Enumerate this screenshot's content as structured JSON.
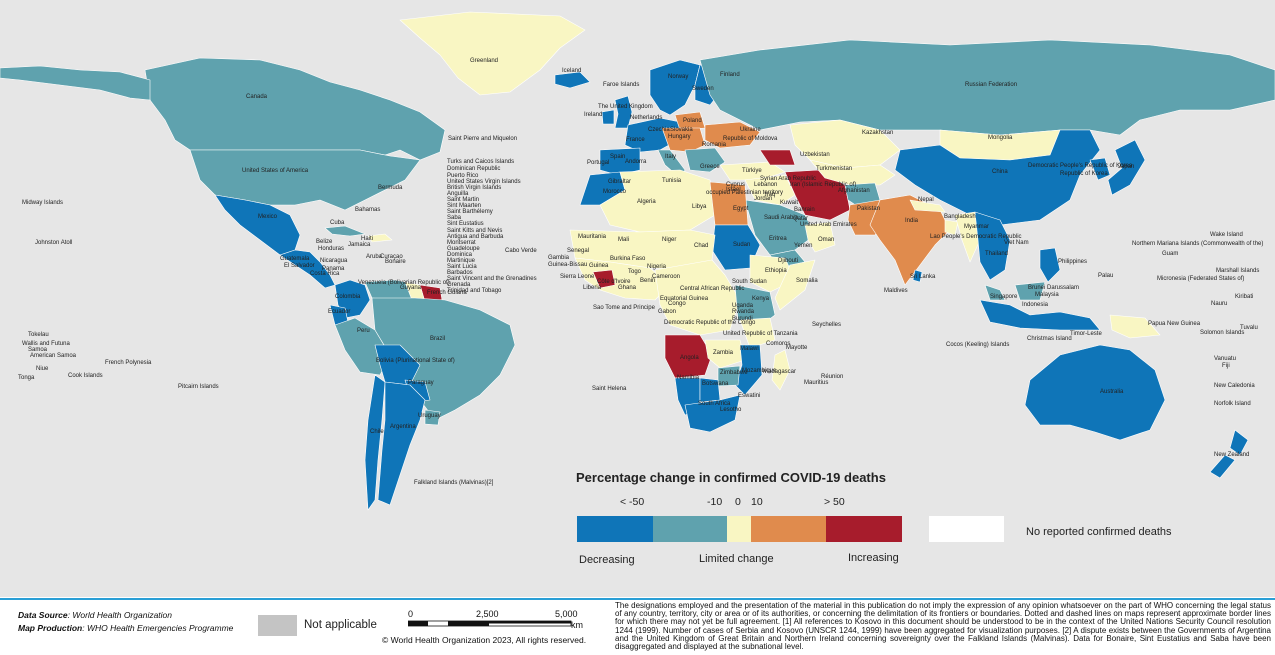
{
  "legend": {
    "title": "Percentage change in confirmed COVID-19 deaths",
    "ticks": [
      "< -50",
      "-10",
      "0",
      "10",
      "> 50"
    ],
    "bins": [
      {
        "name": "< -50",
        "color": "#0f75b8"
      },
      {
        "name": "-50 to -10",
        "color": "#5fa2ae"
      },
      {
        "name": "-10 to 10",
        "color": "#f9f6c3"
      },
      {
        "name": "10 to 50",
        "color": "#e08b4d"
      },
      {
        "name": "> 50",
        "color": "#a71c2c"
      }
    ],
    "no_data_label": "No reported confirmed deaths",
    "no_data_color": "#ffffff",
    "captions": {
      "decreasing": "Decreasing",
      "limited": "Limited change",
      "increasing": "Increasing"
    }
  },
  "colors": {
    "ocean": "#e6e6e6",
    "not_applicable": "#c4c4c4",
    "footer_rule": "#2a9fd6"
  },
  "footer": {
    "data_source_label": "Data Source",
    "data_source": ": World Health Organization",
    "map_production_label": "Map Production",
    "map_production": ": WHO Health Emergencies Programme",
    "not_applicable": "Not applicable",
    "scale": {
      "s0": "0",
      "s1": "2,500",
      "s2": "5,000",
      "unit": "km"
    },
    "copyright": "© World Health Organization 2023, All rights reserved.",
    "disclaimer": "The designations employed and the presentation of the material in this publication do not imply the expression of any opinion whatsoever on the part of WHO concerning the legal status of any country, territory, city or area or of its authorities, or concerning the delimitation of its frontiers or boundaries. Dotted and dashed lines on maps represent approximate border lines for which there may not yet be full agreement. [1] All references to Kosovo in this document should be understood to be in the context of the United Nations Security Council resolution 1244 (1999). Number of cases of Serbia and Kosovo (UNSCR 1244, 1999) have been aggregated for visualization purposes. [2] A dispute exists between the Governments of Argentina and the United Kingdom of Great Britain and Northern Ireland concerning sovereignty over the Falkland Islands (Malvinas). Data for Bonaire, Sint Eustatius and Saba have been disaggregated and displayed at the subnational level."
  },
  "map_labels": [
    "Greenland",
    "Iceland",
    "Canada",
    "Russian Federation",
    "United States of America",
    "Mexico",
    "Cuba",
    "Bahamas",
    "Bermuda",
    "Saint Pierre and Miquelon",
    "Haiti",
    "Jamaica",
    "Belize",
    "Honduras",
    "Guatemala",
    "El Salvador",
    "Nicaragua",
    "Costa Rica",
    "Panama",
    "Colombia",
    "Venezuela (Bolivarian Republic of)",
    "Guyana",
    "French Guiana",
    "Ecuador",
    "Peru",
    "Brazil",
    "Bolivia (Plurinational State of)",
    "Paraguay",
    "Chile",
    "Argentina",
    "Uruguay",
    "Falkland Islands (Malvinas)[2]",
    "Midway Islands",
    "Johnston Atoll",
    "Tokelau",
    "Wallis and Futuna",
    "Samoa",
    "American Samoa",
    "Niue",
    "Tonga",
    "Cook Islands",
    "French Polynesia",
    "Pitcairn Islands",
    "Cabo Verde",
    "Saint Helena",
    "Faroe Islands",
    "The United Kingdom",
    "Ireland",
    "Netherlands",
    "Norway",
    "Sweden",
    "Finland",
    "Poland",
    "Ukraine",
    "Republic of Moldova",
    "Czechia",
    "Slovakia",
    "Hungary",
    "Romania",
    "Spain",
    "France",
    "Portugal",
    "Italy",
    "Greece",
    "Türkiye",
    "Kazakhstan",
    "Mongolia",
    "China",
    "Japan",
    "Democratic People's Republic of Korea",
    "Republic of Korea",
    "Uzbekistan",
    "Turkmenistan",
    "Afghanistan",
    "Pakistan",
    "India",
    "Nepal",
    "Bangladesh",
    "Sri Lanka",
    "Maldives",
    "Myanmar",
    "Lao People's Democratic Republic",
    "Viet Nam",
    "Thailand",
    "Philippines",
    "Malaysia",
    "Singapore",
    "Indonesia",
    "Brunei Darussalam",
    "Timor-Leste",
    "Papua New Guinea",
    "Australia",
    "New Zealand",
    "Solomon Islands",
    "Vanuatu",
    "Fiji",
    "New Caledonia",
    "Norfolk Island",
    "Kiribati",
    "Nauru",
    "Tuvalu",
    "Palau",
    "Micronesia (Federated States of)",
    "Marshall Islands",
    "Wake Island",
    "Northern Mariana Islands (Commonwealth of the)",
    "Guam",
    "Iran (Islamic Republic of)",
    "Iraq",
    "Saudi Arabia",
    "Yemen",
    "Oman",
    "United Arab Emirates",
    "Qatar",
    "Bahrain",
    "Kuwait",
    "Syrian Arab Republic",
    "Lebanon",
    "Israel",
    "Jordan",
    "Egypt",
    "Libya",
    "Tunisia",
    "Algeria",
    "Morocco",
    "Mauritania",
    "Mali",
    "Niger",
    "Chad",
    "Sudan",
    "South Sudan",
    "Ethiopia",
    "Eritrea",
    "Djibouti",
    "Somalia",
    "Kenya",
    "Uganda",
    "Rwanda",
    "Burundi",
    "United Republic of Tanzania",
    "Democratic Republic of the Congo",
    "Central African Republic",
    "Cameroon",
    "Nigeria",
    "Ghana",
    "Côte d'Ivoire",
    "Liberia",
    "Sierra Leone",
    "Guinea",
    "Guinea-Bissau",
    "Senegal",
    "Gambia",
    "Burkina Faso",
    "Benin",
    "Togo",
    "Gabon",
    "Congo",
    "Equatorial Guinea",
    "Sao Tome and Principe",
    "Angola",
    "Zambia",
    "Malawi",
    "Mozambique",
    "Zimbabwe",
    "Botswana",
    "Namibia",
    "South Africa",
    "Eswatini",
    "Lesotho",
    "Madagascar",
    "Comoros",
    "Mayotte",
    "Mauritius",
    "Réunion",
    "Seychelles",
    "Cocos (Keeling) Islands",
    "Christmas Island",
    "Gibraltar",
    "Andorra",
    "Cyprus",
    "occupied Palestinian territory"
  ],
  "caribbean_list": [
    "Turks and Caicos Islands",
    "Dominican Republic",
    "Puerto Rico",
    "United States Virgin Islands",
    "British Virgin Islands",
    "Anguilla",
    "Saint Martin",
    "Sint Maarten",
    "Saint Barthélemy",
    "Saba",
    "Sint Eustatius",
    "Saint Kitts and Nevis",
    "Antigua and Barbuda",
    "Montserrat",
    "Guadeloupe",
    "Dominica",
    "Martinique",
    "Saint Lucia",
    "Barbados",
    "Saint Vincent and the Grenadines",
    "Grenada",
    "Trinidad and Tobago",
    "Bonaire",
    "Aruba",
    "Curaçao"
  ],
  "countries": [
    {
      "name": "greenland",
      "bin": 2
    },
    {
      "name": "canada",
      "bin": 1
    },
    {
      "name": "usa",
      "bin": 1
    },
    {
      "name": "alaska",
      "bin": 1
    },
    {
      "name": "mexico",
      "bin": 0
    },
    {
      "name": "cuba",
      "bin": 1
    },
    {
      "name": "central-america",
      "bin": 0
    },
    {
      "name": "haiti",
      "bin": 2
    },
    {
      "name": "colombia",
      "bin": 0
    },
    {
      "name": "venezuela",
      "bin": 1
    },
    {
      "name": "guyana",
      "bin": 4
    },
    {
      "name": "suriname",
      "bin": 2
    },
    {
      "name": "ecuador",
      "bin": 0
    },
    {
      "name": "peru",
      "bin": 1
    },
    {
      "name": "brazil",
      "bin": 1
    },
    {
      "name": "bolivia",
      "bin": 0
    },
    {
      "name": "paraguay",
      "bin": 0
    },
    {
      "name": "chile",
      "bin": 0
    },
    {
      "name": "argentina",
      "bin": 0
    },
    {
      "name": "uruguay",
      "bin": 1
    },
    {
      "name": "iceland",
      "bin": 0
    },
    {
      "name": "uk",
      "bin": 0
    },
    {
      "name": "ireland",
      "bin": 0
    },
    {
      "name": "scandinavia",
      "bin": 0
    },
    {
      "name": "finland",
      "bin": 0
    },
    {
      "name": "western-europe",
      "bin": 0
    },
    {
      "name": "iberia",
      "bin": 0
    },
    {
      "name": "italy",
      "bin": 1
    },
    {
      "name": "central-europe",
      "bin": 3
    },
    {
      "name": "poland",
      "bin": 3
    },
    {
      "name": "ukraine",
      "bin": 3
    },
    {
      "name": "balkans",
      "bin": 1
    },
    {
      "name": "russia",
      "bin": 1
    },
    {
      "name": "kazakhstan",
      "bin": 2
    },
    {
      "name": "mongolia",
      "bin": 2
    },
    {
      "name": "china",
      "bin": 0
    },
    {
      "name": "korea-japan",
      "bin": 0
    },
    {
      "name": "turkey",
      "bin": 2
    },
    {
      "name": "caucasus",
      "bin": 4
    },
    {
      "name": "iran",
      "bin": 4
    },
    {
      "name": "iraq-syria",
      "bin": 2
    },
    {
      "name": "arabia",
      "bin": 1
    },
    {
      "name": "yemen",
      "bin": 1
    },
    {
      "name": "oman",
      "bin": 2
    },
    {
      "name": "central-asia",
      "bin": 2
    },
    {
      "name": "afghanistan",
      "bin": 1
    },
    {
      "name": "pakistan",
      "bin": 3
    },
    {
      "name": "india",
      "bin": 3
    },
    {
      "name": "nepal-bangladesh",
      "bin": 2
    },
    {
      "name": "sri-lanka",
      "bin": 0
    },
    {
      "name": "myanmar",
      "bin": 2
    },
    {
      "name": "se-asia",
      "bin": 0
    },
    {
      "name": "malaysia",
      "bin": 1
    },
    {
      "name": "indonesia",
      "bin": 0
    },
    {
      "name": "philippines",
      "bin": 0
    },
    {
      "name": "png",
      "bin": 2
    },
    {
      "name": "australia",
      "bin": 0
    },
    {
      "name": "new-zealand",
      "bin": 0
    },
    {
      "name": "north-africa",
      "bin": 2
    },
    {
      "name": "morocco",
      "bin": 0
    },
    {
      "name": "egypt",
      "bin": 3
    },
    {
      "name": "sudan",
      "bin": 0
    },
    {
      "name": "sahel",
      "bin": 2
    },
    {
      "name": "west-africa",
      "bin": 2
    },
    {
      "name": "sierra-leone",
      "bin": 4
    },
    {
      "name": "ethiopia",
      "bin": 2
    },
    {
      "name": "somalia",
      "bin": 2
    },
    {
      "name": "central-africa",
      "bin": 2
    },
    {
      "name": "east-africa",
      "bin": 1
    },
    {
      "name": "angola",
      "bin": 4
    },
    {
      "name": "zambia",
      "bin": 2
    },
    {
      "name": "mozambique",
      "bin": 0
    },
    {
      "name": "namibia",
      "bin": 0
    },
    {
      "name": "botswana",
      "bin": 0
    },
    {
      "name": "south-africa",
      "bin": 0
    },
    {
      "name": "madagascar",
      "bin": 2
    },
    {
      "name": "zimbabwe",
      "bin": 1
    },
    {
      "name": "tanzania",
      "bin": 2
    }
  ]
}
